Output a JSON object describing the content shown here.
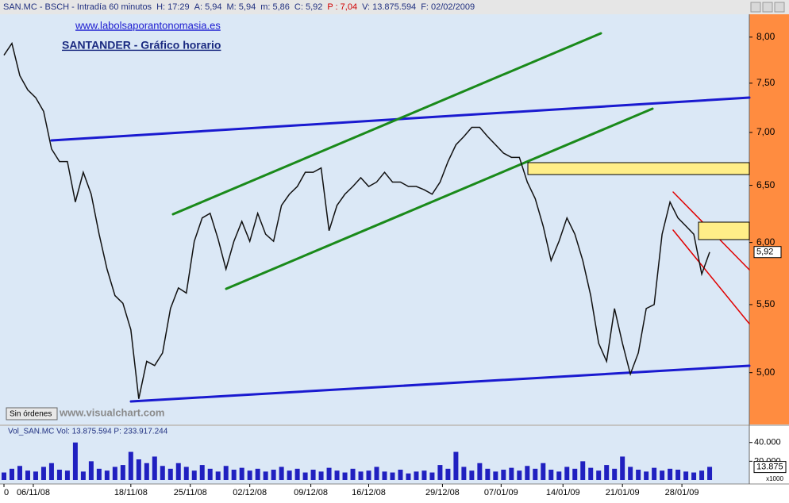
{
  "header": {
    "segments": [
      "SAN.MC - BSCH - Intradía 60 minutos",
      "H: 17:29",
      "A: 5,94",
      "M: 5,94",
      "m: 5,86",
      "C: 5,92",
      "P : 7,04",
      "V: 13.875.594",
      "F: 02/02/2009"
    ]
  },
  "chart_data": [
    {
      "type": "line",
      "title": "SANTANDER - Gráfico horario",
      "subtitle": "www.labolsaporantonomasia.es",
      "annotations": [
        "Sin órdenes",
        "www.visualchart.com"
      ],
      "log_scale": true,
      "xlim": [
        0,
        94
      ],
      "ylim": [
        4.65,
        8.26
      ],
      "yticks": [
        {
          "value": 5,
          "label": "5,00"
        },
        {
          "value": 5.5,
          "label": "5,50"
        },
        {
          "value": 6,
          "label": "6,00"
        },
        {
          "value": 6.5,
          "label": "6,50"
        },
        {
          "value": 7,
          "label": "7,00"
        },
        {
          "value": 7.5,
          "label": "7,50"
        },
        {
          "value": 8,
          "label": "8,00"
        }
      ],
      "last_value": {
        "value": 5.92,
        "label": "5,92"
      },
      "series": [
        {
          "name": "SAN.MC",
          "color": "#111111",
          "values": [
            7.8,
            7.93,
            7.58,
            7.43,
            7.35,
            7.21,
            6.84,
            6.72,
            6.72,
            6.35,
            6.62,
            6.42,
            6.07,
            5.78,
            5.57,
            5.51,
            5.31,
            4.82,
            5.08,
            5.05,
            5.14,
            5.47,
            5.63,
            5.59,
            6.01,
            6.21,
            6.25,
            6.03,
            5.78,
            6.01,
            6.18,
            6.01,
            6.25,
            6.07,
            6.01,
            6.32,
            6.42,
            6.49,
            6.62,
            6.62,
            6.66,
            6.1,
            6.32,
            6.42,
            6.49,
            6.57,
            6.49,
            6.53,
            6.62,
            6.53,
            6.53,
            6.49,
            6.49,
            6.46,
            6.42,
            6.53,
            6.72,
            6.88,
            6.96,
            7.05,
            7.05,
            6.96,
            6.88,
            6.8,
            6.76,
            6.76,
            6.53,
            6.38,
            6.14,
            5.85,
            6.01,
            6.21,
            6.07,
            5.85,
            5.57,
            5.21,
            5.08,
            5.47,
            5.21,
            4.99,
            5.14,
            5.47,
            5.5,
            6.07,
            6.35,
            6.21,
            6.14,
            6.07,
            5.74,
            5.92
          ]
        }
      ]
    },
    {
      "type": "bar",
      "title": "Vol_SAN.MC  Vol: 13.875.594  P: 233.917.244",
      "unit_label": "x1000",
      "xlim": [
        0,
        94
      ],
      "ylim": [
        0,
        55
      ],
      "yticks": [
        {
          "value": 20,
          "label": "20.000"
        },
        {
          "value": 40,
          "label": "40.000"
        }
      ],
      "xticks": [
        0,
        {
          "value": 3.7,
          "label": "06/11/08"
        },
        {
          "value": 16,
          "label": "18/11/08"
        },
        {
          "value": 23.5,
          "label": "25/11/08"
        },
        {
          "value": 31,
          "label": "02/12/08"
        },
        {
          "value": 38.7,
          "label": "09/12/08"
        },
        {
          "value": 46,
          "label": "16/12/08"
        },
        {
          "value": 55.3,
          "label": "29/12/08"
        },
        {
          "value": 62.7,
          "label": "07/01/09"
        },
        {
          "value": 70.5,
          "label": "14/01/09"
        },
        {
          "value": 78,
          "label": "21/01/09"
        },
        {
          "value": 85.5,
          "label": "28/01/09"
        }
      ],
      "last_value": {
        "value": 13.875,
        "label": "13.875"
      },
      "color": "#2020c0",
      "values": [
        8,
        12,
        15,
        10,
        9,
        14,
        18,
        11,
        10,
        40,
        9,
        20,
        12,
        10,
        14,
        16,
        30,
        22,
        18,
        25,
        15,
        12,
        18,
        14,
        10,
        16,
        12,
        9,
        15,
        11,
        13,
        10,
        12,
        9,
        11,
        14,
        10,
        12,
        8,
        11,
        9,
        13,
        10,
        8,
        12,
        9,
        10,
        14,
        9,
        8,
        11,
        7,
        9,
        10,
        8,
        16,
        12,
        30,
        14,
        10,
        18,
        12,
        9,
        11,
        13,
        10,
        15,
        12,
        18,
        11,
        9,
        14,
        12,
        20,
        13,
        10,
        16,
        12,
        25,
        14,
        11,
        9,
        13,
        10,
        12,
        11,
        9,
        8,
        10,
        14
      ]
    }
  ]
}
